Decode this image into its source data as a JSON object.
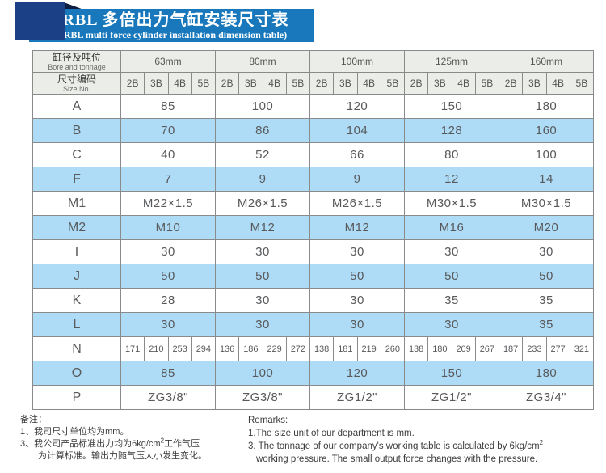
{
  "banner": {
    "title_zh": "JRBL 多倍出力气缸安装尺寸表",
    "title_en": "(JRBL multi force cylinder installation dimension table)"
  },
  "colors": {
    "banner_blue": "#1878bb",
    "corner_square_navy": "#1c4086",
    "row_highlight_blue": "#aedcf7",
    "header_cell_gray": "#ebeee8"
  },
  "table": {
    "corner": {
      "row1_zh": "缸径及吨位",
      "row1_en": "Bore and tonnage",
      "row2_zh": "尺寸编码",
      "row2_en": "Size No."
    },
    "sizes": [
      "63mm",
      "80mm",
      "100mm",
      "125mm",
      "160mm"
    ],
    "sub_headers": [
      "2B",
      "3B",
      "4B",
      "5B"
    ],
    "rows": [
      {
        "label": "A",
        "type": "merged",
        "values": [
          "85",
          "100",
          "120",
          "150",
          "180"
        ]
      },
      {
        "label": "B",
        "type": "merged",
        "values": [
          "70",
          "86",
          "104",
          "128",
          "160"
        ]
      },
      {
        "label": "C",
        "type": "merged",
        "values": [
          "40",
          "52",
          "66",
          "80",
          "100"
        ]
      },
      {
        "label": "F",
        "type": "merged",
        "values": [
          "7",
          "9",
          "9",
          "12",
          "14"
        ]
      },
      {
        "label": "M1",
        "type": "merged",
        "values": [
          "M22×1.5",
          "M26×1.5",
          "M26×1.5",
          "M30×1.5",
          "M30×1.5"
        ]
      },
      {
        "label": "M2",
        "type": "merged",
        "values": [
          "M10",
          "M12",
          "M12",
          "M16",
          "M20"
        ]
      },
      {
        "label": "I",
        "type": "merged",
        "values": [
          "30",
          "30",
          "30",
          "30",
          "30"
        ]
      },
      {
        "label": "J",
        "type": "merged",
        "values": [
          "50",
          "50",
          "50",
          "50",
          "50"
        ]
      },
      {
        "label": "K",
        "type": "merged",
        "values": [
          "28",
          "30",
          "30",
          "35",
          "35"
        ]
      },
      {
        "label": "L",
        "type": "merged",
        "values": [
          "30",
          "30",
          "30",
          "30",
          "35"
        ]
      },
      {
        "label": "N",
        "type": "per-cell",
        "values": [
          [
            "171",
            "210",
            "253",
            "294"
          ],
          [
            "136",
            "186",
            "229",
            "272"
          ],
          [
            "138",
            "181",
            "219",
            "260"
          ],
          [
            "138",
            "180",
            "209",
            "267"
          ],
          [
            "187",
            "233",
            "277",
            "321"
          ]
        ]
      },
      {
        "label": "O",
        "type": "merged",
        "values": [
          "85",
          "100",
          "120",
          "150",
          "180"
        ]
      },
      {
        "label": "P",
        "type": "merged",
        "values": [
          "ZG3/8\"",
          "ZG3/8\"",
          "ZG1/2\"",
          "ZG1/2\"",
          "ZG3/4\""
        ]
      }
    ]
  },
  "notes_zh": {
    "heading": "备注：",
    "line1": "1、我司尺寸单位均为mm。",
    "line2_pre": "3、我公司产品标准出力均为6kg/cm",
    "line2_sup": "2",
    "line2_post": "工作气压",
    "line3": "为计算标准。输出力随气压大小发生变化。"
  },
  "notes_en": {
    "heading": "Remarks:",
    "line1": "1.The size unit of our department is mm.",
    "line2_pre": "3. The tonnage of our company's working table is calculated by 6kg/cm",
    "line2_sup": "2",
    "line3": "working pressure. The small output force changes with the pressure."
  }
}
